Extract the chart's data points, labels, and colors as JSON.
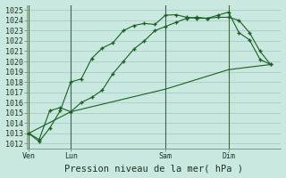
{
  "title": "Pression niveau de la mer( hPa )",
  "bg_color": "#c8e8e0",
  "grid_color": "#a0c8c0",
  "line_color": "#1a6020",
  "vline_color": "#446644",
  "ylim": [
    1011.5,
    1025.5
  ],
  "yticks": [
    1012,
    1013,
    1014,
    1015,
    1016,
    1017,
    1018,
    1019,
    1020,
    1021,
    1022,
    1023,
    1024,
    1025
  ],
  "xtick_labels": [
    "Ven",
    "Lun",
    "Sam",
    "Dim"
  ],
  "xtick_positions": [
    0,
    4,
    13,
    19
  ],
  "xlim": [
    -0.2,
    24.0
  ],
  "line1_x": [
    0,
    1,
    2,
    3,
    4,
    5,
    6,
    7,
    8,
    9,
    10,
    11,
    12,
    13,
    14,
    15,
    16,
    17,
    18,
    19,
    20,
    21,
    22,
    23
  ],
  "line1_y": [
    1013.0,
    1012.2,
    1013.5,
    1015.2,
    1018.0,
    1018.3,
    1020.3,
    1021.3,
    1021.8,
    1023.0,
    1023.5,
    1023.7,
    1023.6,
    1024.5,
    1024.55,
    1024.3,
    1024.2,
    1024.2,
    1024.5,
    1024.8,
    1022.8,
    1022.1,
    1020.2,
    1019.7
  ],
  "line2_x": [
    0,
    1,
    2,
    3,
    4,
    5,
    6,
    7,
    8,
    9,
    10,
    11,
    12,
    13,
    14,
    15,
    16,
    17,
    18,
    19,
    20,
    21,
    22,
    23
  ],
  "line2_y": [
    1013.0,
    1012.4,
    1015.2,
    1015.5,
    1015.1,
    1016.0,
    1016.5,
    1017.2,
    1018.8,
    1020.0,
    1021.2,
    1022.0,
    1023.0,
    1023.4,
    1023.8,
    1024.2,
    1024.3,
    1024.2,
    1024.3,
    1024.3,
    1024.0,
    1022.8,
    1021.0,
    1019.7
  ],
  "line3_x": [
    0,
    4,
    13,
    19,
    23
  ],
  "line3_y": [
    1013.0,
    1015.1,
    1017.3,
    1019.2,
    1019.7
  ],
  "vlines_x": [
    0,
    4,
    13,
    19
  ],
  "tick_fontsize": 6,
  "xlabel_fontsize": 7.5
}
